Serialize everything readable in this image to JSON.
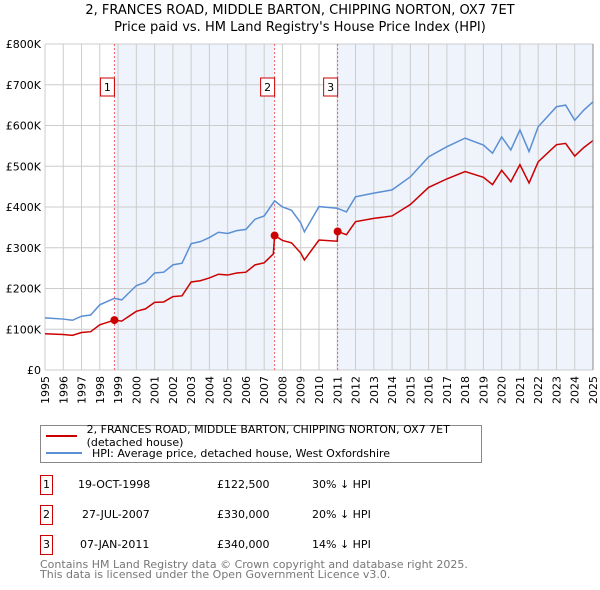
{
  "chart_data": {
    "type": "line",
    "title": "2, FRANCES ROAD, MIDDLE BARTON, CHIPPING NORTON, OX7 7ET",
    "subtitle": "Price paid vs. HM Land Registry's House Price Index (HPI)",
    "xlim": [
      1995,
      2025
    ],
    "ylim": [
      0,
      800000
    ],
    "x_ticks": [
      "1995",
      "1996",
      "1997",
      "1998",
      "1999",
      "2000",
      "2001",
      "2002",
      "2003",
      "2004",
      "2005",
      "2006",
      "2007",
      "2008",
      "2009",
      "2010",
      "2011",
      "2012",
      "2013",
      "2014",
      "2015",
      "2016",
      "2017",
      "2018",
      "2019",
      "2020",
      "2021",
      "2022",
      "2023",
      "2024",
      "2025"
    ],
    "y_ticks": [
      {
        "v": 0,
        "label": "£0"
      },
      {
        "v": 100000,
        "label": "£100K"
      },
      {
        "v": 200000,
        "label": "£200K"
      },
      {
        "v": 300000,
        "label": "£300K"
      },
      {
        "v": 400000,
        "label": "£400K"
      },
      {
        "v": 500000,
        "label": "£500K"
      },
      {
        "v": 600000,
        "label": "£600K"
      },
      {
        "v": 700000,
        "label": "£700K"
      },
      {
        "v": 800000,
        "label": "£800K"
      }
    ],
    "grid": true,
    "colors": {
      "property": "#cc0000",
      "hpi": "#5b8fd4",
      "shade": "#eef3fc"
    },
    "series": [
      {
        "name": "2, FRANCES ROAD, MIDDLE BARTON, CHIPPING NORTON, OX7 7ET (detached house)",
        "color": "#cc0000",
        "points": [
          [
            1995,
            89
          ],
          [
            1996,
            87
          ],
          [
            1996.5,
            85
          ],
          [
            1997,
            92
          ],
          [
            1997.5,
            94
          ],
          [
            1998,
            111
          ],
          [
            1998.8,
            122.5
          ],
          [
            1999.2,
            120
          ],
          [
            2000,
            144
          ],
          [
            2000.5,
            150
          ],
          [
            2001,
            166
          ],
          [
            2001.5,
            167
          ],
          [
            2002,
            180
          ],
          [
            2002.5,
            182
          ],
          [
            2003,
            216
          ],
          [
            2003.5,
            219
          ],
          [
            2004,
            226
          ],
          [
            2004.5,
            235
          ],
          [
            2005,
            233
          ],
          [
            2005.5,
            238
          ],
          [
            2006,
            240
          ],
          [
            2006.5,
            258
          ],
          [
            2007,
            263
          ],
          [
            2007.5,
            285
          ],
          [
            2007.57,
            330
          ],
          [
            2008,
            318
          ],
          [
            2008.5,
            312
          ],
          [
            2009,
            287
          ],
          [
            2009.2,
            270
          ],
          [
            2010,
            319
          ],
          [
            2011,
            316
          ],
          [
            2011.02,
            340
          ],
          [
            2011.5,
            332
          ],
          [
            2012,
            364
          ],
          [
            2013,
            372
          ],
          [
            2014,
            378
          ],
          [
            2015,
            406
          ],
          [
            2016,
            448
          ],
          [
            2017,
            469
          ],
          [
            2018,
            487
          ],
          [
            2019,
            473
          ],
          [
            2019.5,
            455
          ],
          [
            2020,
            490
          ],
          [
            2020.5,
            462
          ],
          [
            2021,
            504
          ],
          [
            2021.5,
            459
          ],
          [
            2022,
            511
          ],
          [
            2023,
            553
          ],
          [
            2023.5,
            556
          ],
          [
            2024,
            525
          ],
          [
            2024.5,
            546
          ],
          [
            2025,
            563
          ]
        ]
      },
      {
        "name": "HPI: Average price, detached house, West Oxfordshire",
        "color": "#5b8fd4",
        "points": [
          [
            1995,
            128
          ],
          [
            1996,
            125
          ],
          [
            1996.5,
            122
          ],
          [
            1997,
            132
          ],
          [
            1997.5,
            135
          ],
          [
            1998,
            160
          ],
          [
            1998.8,
            176
          ],
          [
            1999.2,
            172
          ],
          [
            2000,
            207
          ],
          [
            2000.5,
            215
          ],
          [
            2001,
            238
          ],
          [
            2001.5,
            240
          ],
          [
            2002,
            258
          ],
          [
            2002.5,
            262
          ],
          [
            2003,
            310
          ],
          [
            2003.5,
            315
          ],
          [
            2004,
            325
          ],
          [
            2004.5,
            338
          ],
          [
            2005,
            335
          ],
          [
            2005.5,
            342
          ],
          [
            2006,
            345
          ],
          [
            2006.5,
            370
          ],
          [
            2007,
            378
          ],
          [
            2007.57,
            415
          ],
          [
            2008,
            400
          ],
          [
            2008.5,
            392
          ],
          [
            2009,
            361
          ],
          [
            2009.2,
            339
          ],
          [
            2010,
            401
          ],
          [
            2011,
            397
          ],
          [
            2011.5,
            388
          ],
          [
            2012,
            425
          ],
          [
            2013,
            434
          ],
          [
            2014,
            442
          ],
          [
            2015,
            474
          ],
          [
            2016,
            523
          ],
          [
            2017,
            548
          ],
          [
            2018,
            569
          ],
          [
            2019,
            552
          ],
          [
            2019.5,
            532
          ],
          [
            2020,
            572
          ],
          [
            2020.5,
            540
          ],
          [
            2021,
            589
          ],
          [
            2021.5,
            536
          ],
          [
            2022,
            597
          ],
          [
            2023,
            646
          ],
          [
            2023.5,
            650
          ],
          [
            2024,
            613
          ],
          [
            2024.5,
            638
          ],
          [
            2025,
            658
          ]
        ]
      }
    ],
    "points_unit": "thousands GBP",
    "sales": [
      {
        "label": "1",
        "x": 1998.8,
        "date": "19-OCT-1998",
        "price": "£122,500",
        "value": 122.5,
        "hpi": "30% ↓ HPI"
      },
      {
        "label": "2",
        "x": 2007.57,
        "date": "27-JUL-2007",
        "price": "£330,000",
        "value": 330,
        "hpi": "20% ↓ HPI"
      },
      {
        "label": "3",
        "x": 2011.02,
        "date": "07-JAN-2011",
        "price": "£340,000",
        "value": 340,
        "hpi": "14% ↓ HPI"
      }
    ]
  },
  "legend": {
    "property": "2, FRANCES ROAD, MIDDLE BARTON, CHIPPING NORTON, OX7 7ET (detached house)",
    "hpi": "HPI: Average price, detached house, West Oxfordshire"
  },
  "footer": {
    "line1": "Contains HM Land Registry data © Crown copyright and database right 2025.",
    "line2": "This data is licensed under the Open Government Licence v3.0."
  }
}
